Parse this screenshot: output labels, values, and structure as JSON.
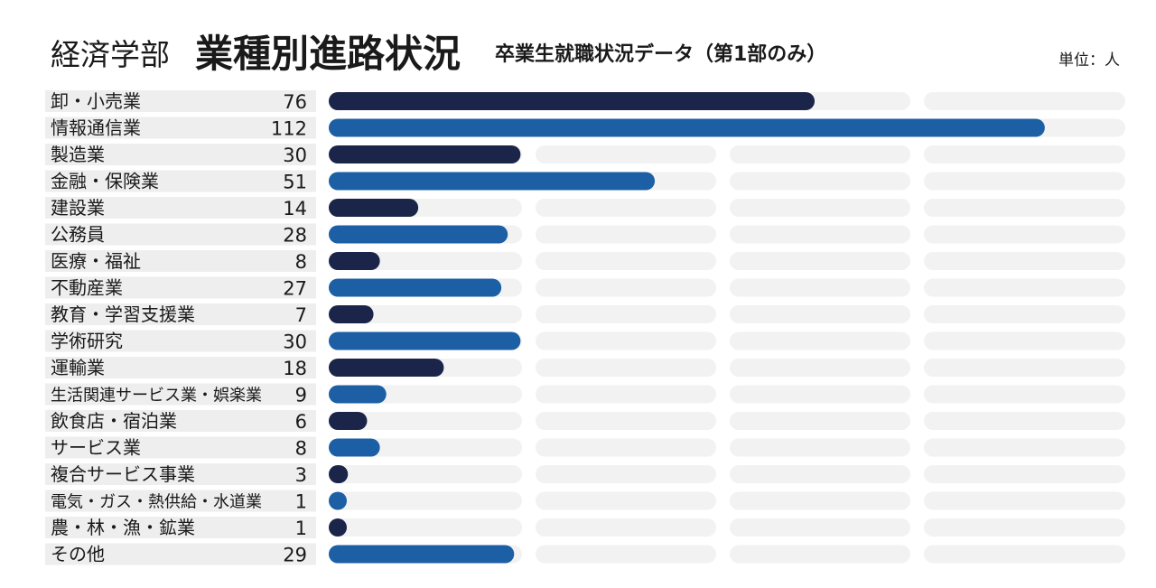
{
  "header": {
    "dept": "経済学部",
    "title": "業種別進路状況",
    "subtitle": "卒業生就職状況データ（第1部のみ）",
    "unit": "単位：人"
  },
  "colors": {
    "navy": "#1b2449",
    "blue": "#1c5fa4",
    "track": "#f2f2f2",
    "label_bg": "#eeeeee"
  },
  "chart_data": {
    "type": "bar",
    "orientation": "horizontal",
    "categories": [
      "卸・小売業",
      "情報通信業",
      "製造業",
      "金融・保険業",
      "建設業",
      "公務員",
      "医療・福祉",
      "不動産業",
      "教育・学習支援業",
      "学術研究",
      "運輸業",
      "生活関連サービス業・娯楽業",
      "飲食店・宿泊業",
      "サービス業",
      "複合サービス事業",
      "電気・ガス・熱供給・水道業",
      "農・林・漁・鉱業",
      "その他"
    ],
    "values": [
      76,
      112,
      30,
      51,
      14,
      28,
      8,
      27,
      7,
      30,
      18,
      9,
      6,
      8,
      3,
      1,
      1,
      29
    ],
    "xlim": [
      0,
      120
    ],
    "grid": false,
    "bar_colors": [
      "navy",
      "blue",
      "navy",
      "blue",
      "navy",
      "blue",
      "navy",
      "blue",
      "navy",
      "blue",
      "navy",
      "blue",
      "navy",
      "blue",
      "navy",
      "blue",
      "navy",
      "blue"
    ]
  }
}
